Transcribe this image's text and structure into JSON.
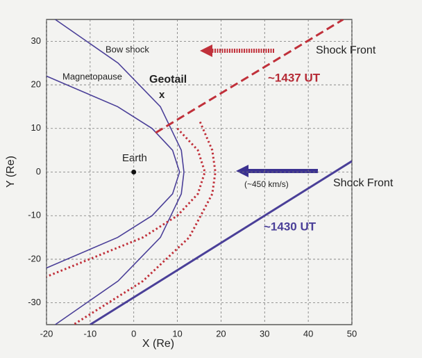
{
  "chart_data": {
    "type": "line",
    "xlabel": "X (Re)",
    "ylabel": "Y (Re)",
    "xlim": [
      -20,
      50
    ],
    "ylim": [
      -35,
      35
    ],
    "xticks": [
      -20,
      -10,
      0,
      10,
      20,
      30,
      40,
      50
    ],
    "yticks": [
      -30,
      -20,
      -10,
      0,
      10,
      20,
      30
    ],
    "grid": true,
    "series": [
      {
        "color": "#4a3f98",
        "style": "solid",
        "width": 1.6,
        "x": [
          -18.0,
          -3.6,
          6.1,
          10.9,
          11.5,
          10.9,
          6.1,
          -3.6,
          -18.0
        ],
        "values": [
          35,
          25,
          15,
          5,
          0,
          -5,
          -15,
          -25,
          -35
        ]
      },
      {
        "color": "#4a3f98",
        "style": "solid",
        "width": 1.6,
        "x": [
          -20.0,
          -3.7,
          4.2,
          8.9,
          10.5,
          8.9,
          4.2,
          -3.7,
          -20.0
        ],
        "values": [
          22,
          15,
          10,
          5,
          0,
          -5,
          -10,
          -15,
          -22
        ]
      },
      {
        "color": "#c0303a",
        "style": "dotted",
        "width": 3,
        "x": [
          15.2,
          18.0,
          18.7,
          18.0,
          12.7,
          2.1,
          -13.8
        ],
        "values": [
          11.5,
          5,
          0,
          -5,
          -15,
          -25,
          -35
        ]
      },
      {
        "color": "#c0303a",
        "style": "dotted",
        "width": 3,
        "x": [
          10.0,
          14.7,
          16.3,
          14.7,
          10.0,
          2.1,
          -20.0
        ],
        "values": [
          10,
          5,
          0,
          -5,
          -10,
          -15,
          -24
        ]
      },
      {
        "color": "#c0303a",
        "style": "dashed",
        "width": 3,
        "x": [
          5,
          48
        ],
        "values": [
          9,
          35
        ]
      },
      {
        "color": "#4a3f98",
        "style": "solid",
        "width": 3,
        "x": [
          -10,
          50
        ],
        "values": [
          -35,
          2.5
        ]
      }
    ],
    "earth": {
      "x": 0,
      "y": 0
    },
    "annotations": [
      "Bow shock",
      "Magnetopause",
      "Geotail",
      "x",
      "Earth",
      "~1437 UT",
      "Shock Front",
      "(~450 km/s)",
      "Shock Front",
      "~1430 UT"
    ]
  }
}
